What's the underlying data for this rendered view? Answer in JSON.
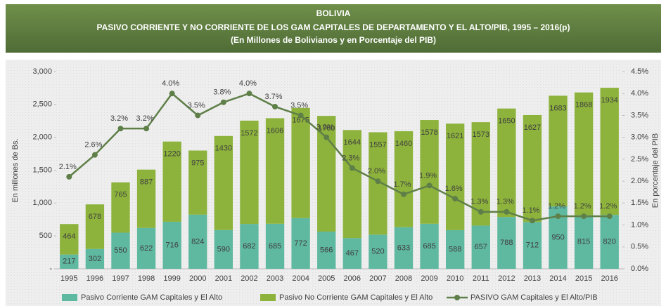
{
  "chart_data": {
    "type": "bar",
    "stacked": true,
    "title": "BOLIVIA",
    "subtitle": [
      "PASIVO CORRIENTE Y NO CORRIENTE DE LOS GAM CAPITALES DE DEPARTAMENTO Y EL ALTO/PIB, 1995 – 2016(p)",
      "(En Millones de Bolivianos y en Porcentaje del PIB)"
    ],
    "ylabel": "En millones de Bs.",
    "y2label": "En porcentaje del PIB",
    "categories": [
      "1995",
      "1996",
      "1997",
      "1998",
      "1999",
      "2000",
      "2001",
      "2002",
      "2003",
      "2004",
      "2005",
      "2006",
      "2007",
      "2008",
      "2009",
      "2010",
      "2011",
      "2012",
      "2013",
      "2014",
      "2015",
      "2016"
    ],
    "series": [
      {
        "name": "Pasivo Corriente GAM Capitales y El Alto",
        "type": "bar",
        "color": "#5fb8a0",
        "values": [
          217,
          302,
          550,
          622,
          716,
          824,
          590,
          682,
          685,
          772,
          566,
          467,
          520,
          633,
          685,
          588,
          657,
          788,
          712,
          950,
          815,
          820
        ]
      },
      {
        "name": "Pasivo No Corriente GAM Capitales y El Alto",
        "type": "bar",
        "color": "#8db33c",
        "values": [
          464,
          678,
          765,
          887,
          1220,
          975,
          1430,
          1572,
          1606,
          1675,
          1760,
          1644,
          1557,
          1460,
          1578,
          1621,
          1573,
          1650,
          1627,
          1683,
          1868,
          1934
        ]
      },
      {
        "name": "PASIVO GAM Capitales y El Alto/PIB",
        "type": "line",
        "axis": "y2",
        "color": "#5f7f48",
        "values": [
          2.1,
          2.6,
          3.2,
          3.2,
          4.0,
          3.5,
          3.8,
          4.0,
          3.7,
          3.5,
          3.0,
          2.3,
          2.0,
          1.7,
          1.9,
          1.6,
          1.3,
          1.3,
          1.1,
          1.2,
          1.2,
          1.2
        ],
        "value_labels": [
          "2.1%",
          "2.6%",
          "3.2%",
          "3.2%",
          "4.0%",
          "3.5%",
          "3.8%",
          "4.0%",
          "3.7%",
          "3.5%",
          "3.0%",
          "2.3%",
          "2.0%",
          "1.7%",
          "1.9%",
          "1.6%",
          "1.3%",
          "1.3%",
          "1.1%",
          "1.2%",
          "1.2%",
          "1.2%"
        ]
      }
    ],
    "ylim": [
      0,
      3000
    ],
    "yticks": [
      {
        "value": 0,
        "label": "-"
      },
      500,
      {
        "value": 1000,
        "label": "1,000"
      },
      {
        "value": 1500,
        "label": "1,500"
      },
      {
        "value": 2000,
        "label": "2,000"
      },
      {
        "value": 2500,
        "label": "2,500"
      },
      {
        "value": 3000,
        "label": "3,000"
      }
    ],
    "y2lim": [
      0,
      4.5
    ],
    "y2ticks": [
      {
        "value": 0,
        "label": "0.0%"
      },
      {
        "value": 0.5,
        "label": "0.5%"
      },
      {
        "value": 1,
        "label": "1.0%"
      },
      {
        "value": 1.5,
        "label": "1.5%"
      },
      {
        "value": 2,
        "label": "2.0%"
      },
      {
        "value": 2.5,
        "label": "2.5%"
      },
      {
        "value": 3,
        "label": "3.0%"
      },
      {
        "value": 3.5,
        "label": "3.5%"
      },
      {
        "value": 4,
        "label": "4.0%"
      },
      {
        "value": 4.5,
        "label": "4.5%"
      }
    ],
    "legend": "bottom"
  }
}
